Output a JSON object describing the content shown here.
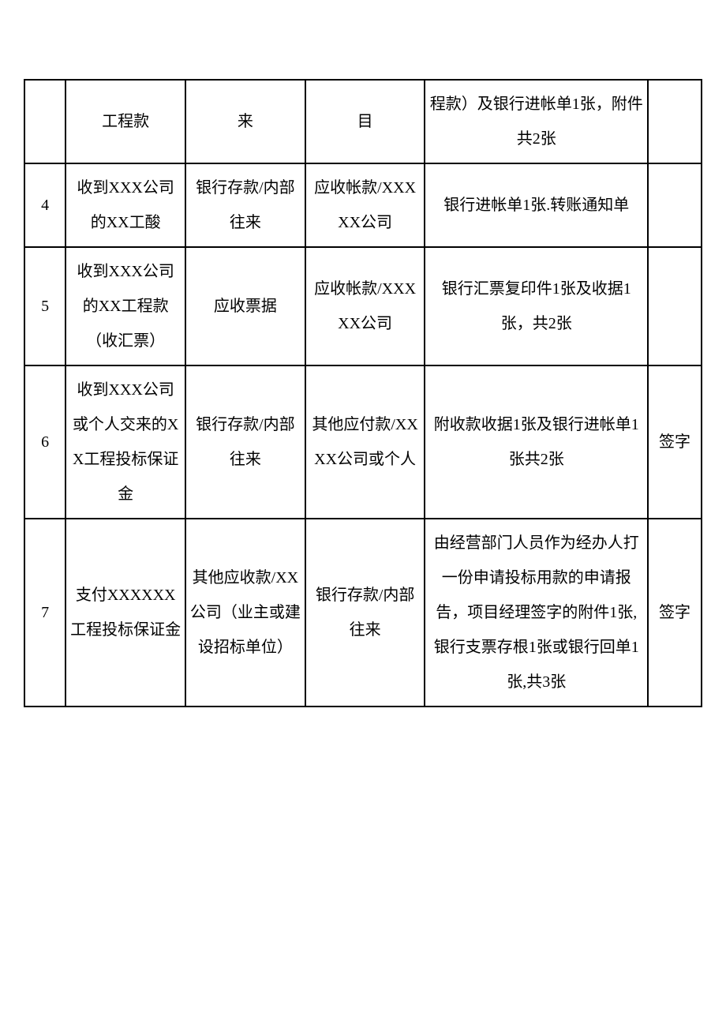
{
  "table": {
    "columns": [
      {
        "key": "num",
        "class": "col-num"
      },
      {
        "key": "desc",
        "class": "col-desc"
      },
      {
        "key": "debit",
        "class": "col-debit"
      },
      {
        "key": "credit",
        "class": "col-credit"
      },
      {
        "key": "attach",
        "class": "col-attach"
      },
      {
        "key": "sign",
        "class": "col-sign"
      }
    ],
    "rows": [
      {
        "num": "",
        "desc": "工程款",
        "debit": "来",
        "credit": "目",
        "attach": "程款）及银行进帐单1张，附件共2张",
        "sign": ""
      },
      {
        "num": "4",
        "desc": "收到XXX公司的XX工酸",
        "debit": "银行存款/内部往来",
        "credit": "应收帐款/XXXXX公司",
        "attach": "银行进帐单1张.转账通知单",
        "sign": ""
      },
      {
        "num": "5",
        "desc": "收到XXX公司的XX工程款（收汇票）",
        "debit": "应收票据",
        "credit": "应收帐款/XXXXX公司",
        "attach": "银行汇票复印件1张及收据1张，共2张",
        "sign": ""
      },
      {
        "num": "6",
        "desc": "收到XXX公司或个人交来的XX工程投标保证金",
        "debit": "银行存款/内部往来",
        "credit": "其他应付款/XXXX公司或个人",
        "attach": "附收款收据1张及银行进帐单1张共2张",
        "sign": "签字"
      },
      {
        "num": "7",
        "desc": "支付XXXXXX工程投标保证金",
        "debit": "其他应收款/XX公司（业主或建设招标单位）",
        "credit": "银行存款/内部往来",
        "attach": "由经营部门人员作为经办人打一份申请投标用款的申请报告，项目经理签字的附件1张,银行支票存根1张或银行回单1张,共3张",
        "sign": "签字"
      }
    ],
    "styling": {
      "border_color": "#000000",
      "border_width": 2,
      "background_color": "#ffffff",
      "text_color": "#000000",
      "font_size": 20,
      "line_height": 2.2,
      "cell_align": "center",
      "cell_valign": "middle"
    }
  }
}
